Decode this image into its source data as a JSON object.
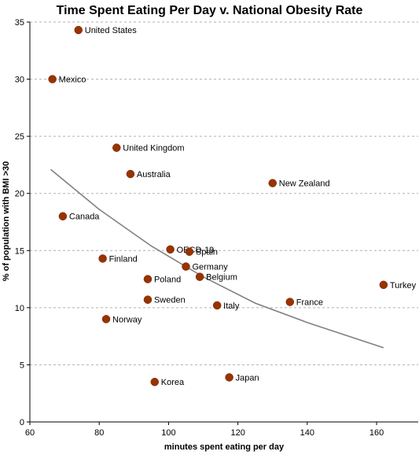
{
  "chart_data": {
    "type": "scatter",
    "title": "Time Spent Eating Per Day v. National Obesity Rate",
    "xlabel": "minutes spent eating per day",
    "ylabel": "% of population with BMI >30",
    "xlim": [
      60,
      172
    ],
    "ylim": [
      0,
      35
    ],
    "x_ticks": [
      60,
      80,
      100,
      120,
      140,
      160
    ],
    "y_ticks": [
      0,
      5,
      10,
      15,
      20,
      25,
      30,
      35
    ],
    "grid": "horizontal dashed",
    "point_color": "#993300",
    "trend_color": "#808080",
    "points": [
      {
        "label": "United States",
        "x": 74,
        "y": 34.3
      },
      {
        "label": "Mexico",
        "x": 66.5,
        "y": 30.0
      },
      {
        "label": "United Kingdom",
        "x": 85,
        "y": 24.0
      },
      {
        "label": "Australia",
        "x": 89,
        "y": 21.7
      },
      {
        "label": "New Zealand",
        "x": 130,
        "y": 20.9
      },
      {
        "label": "Canada",
        "x": 69.5,
        "y": 18.0
      },
      {
        "label": "OECD-19",
        "x": 100.5,
        "y": 15.1
      },
      {
        "label": "Spain",
        "x": 106,
        "y": 14.9
      },
      {
        "label": "Finland",
        "x": 81,
        "y": 14.3
      },
      {
        "label": "Germany",
        "x": 105,
        "y": 13.6
      },
      {
        "label": "Belgium",
        "x": 109,
        "y": 12.7
      },
      {
        "label": "Poland",
        "x": 94,
        "y": 12.5
      },
      {
        "label": "Turkey",
        "x": 162,
        "y": 12.0
      },
      {
        "label": "Sweden",
        "x": 94,
        "y": 10.7
      },
      {
        "label": "France",
        "x": 135,
        "y": 10.5
      },
      {
        "label": "Italy",
        "x": 114,
        "y": 10.2
      },
      {
        "label": "Norway",
        "x": 82,
        "y": 9.0
      },
      {
        "label": "Japan",
        "x": 117.5,
        "y": 3.9
      },
      {
        "label": "Korea",
        "x": 96,
        "y": 3.5
      }
    ],
    "trendline": {
      "x": [
        66,
        80,
        95,
        110,
        125,
        140,
        162
      ],
      "y": [
        22.1,
        18.6,
        15.4,
        12.7,
        10.4,
        8.7,
        6.5
      ]
    }
  }
}
